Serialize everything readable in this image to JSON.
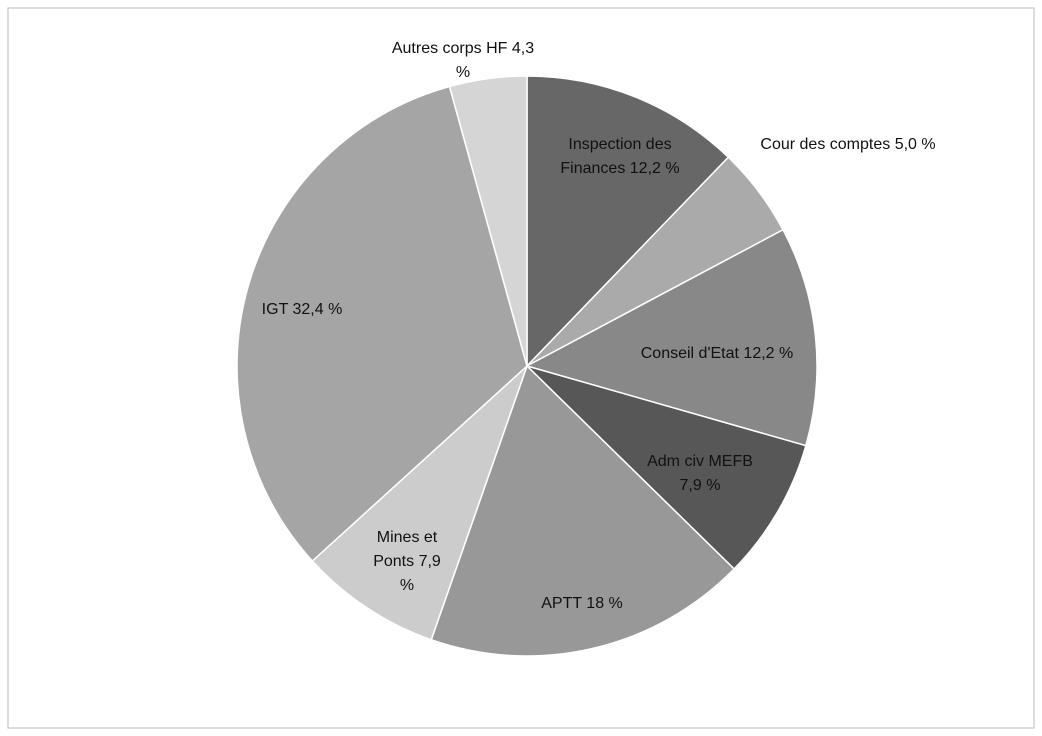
{
  "chart_data": {
    "type": "pie",
    "categories": [
      "Inspection des Finances",
      "Cour des comptes",
      "Conseil d'Etat",
      "Adm civ MEFB",
      "APTT",
      "Mines et Ponts",
      "IGT",
      "Autres corps HF"
    ],
    "values": [
      12.2,
      5.0,
      12.2,
      7.9,
      18,
      7.9,
      32.4,
      4.3
    ],
    "value_labels": [
      "12,2 %",
      "5,0 %",
      "12,2 %",
      "7,9 %",
      "18 %",
      "7,9 %",
      "32,4 %",
      "4,3 %"
    ],
    "colors": [
      "#676767",
      "#aaaaaa",
      "#888888",
      "#575757",
      "#989898",
      "#cccccc",
      "#a5a5a5",
      "#d5d5d5"
    ]
  }
}
